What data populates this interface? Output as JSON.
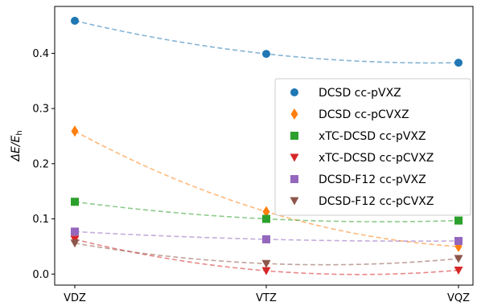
{
  "chart_data": {
    "type": "line",
    "categories": [
      "VDZ",
      "VTZ",
      "VQZ"
    ],
    "ylabel": "ΔE/E",
    "ylabel_sub": "h",
    "ylim": [
      -0.02,
      0.485
    ],
    "yticks": [
      "0.0",
      "0.1",
      "0.2",
      "0.3",
      "0.4"
    ],
    "grid": false,
    "legend_position": "center-right",
    "series": [
      {
        "name": "DCSD cc-pVXZ",
        "values": [
          0.459,
          0.399,
          0.383
        ],
        "color": "#1f77b4",
        "marker": "circle"
      },
      {
        "name": "DCSD cc-pCVXZ",
        "values": [
          0.259,
          0.113,
          0.05
        ],
        "color": "#ff7f0e",
        "marker": "diamond"
      },
      {
        "name": "xTC-DCSD cc-pVXZ",
        "values": [
          0.131,
          0.1,
          0.097
        ],
        "color": "#2ca02c",
        "marker": "square"
      },
      {
        "name": "xTC-DCSD cc-pCVXZ",
        "values": [
          0.063,
          0.006,
          0.007
        ],
        "color": "#d62728",
        "marker": "triangle-down"
      },
      {
        "name": "DCSD-F12 cc-pVXZ",
        "values": [
          0.077,
          0.063,
          0.06
        ],
        "color": "#9467bd",
        "marker": "square"
      },
      {
        "name": "DCSD-F12 cc-pCVXZ",
        "values": [
          0.056,
          0.019,
          0.028
        ],
        "color": "#8c564b",
        "marker": "triangle-down"
      }
    ]
  }
}
